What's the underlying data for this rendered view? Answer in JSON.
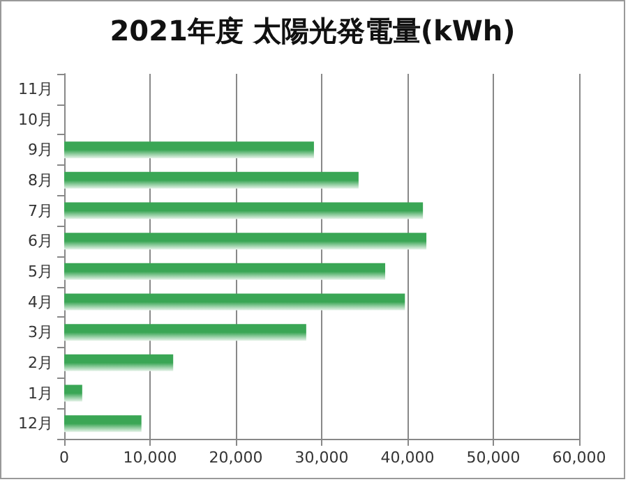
{
  "chart_data": {
    "type": "bar",
    "orientation": "horizontal",
    "title": "2021年度 太陽光発電量(kWh)",
    "categories": [
      "11月",
      "10月",
      "9月",
      "8月",
      "7月",
      "6月",
      "5月",
      "4月",
      "3月",
      "2月",
      "1月",
      "12月"
    ],
    "values": [
      null,
      null,
      29100,
      34300,
      41800,
      42200,
      37400,
      39700,
      28200,
      12700,
      2100,
      9000
    ],
    "color": "#3aa655",
    "xlim": [
      0,
      60000
    ],
    "xticks": [
      0,
      {
        "value": 10000,
        "label": "10,000"
      },
      {
        "value": 20000,
        "label": "20,000"
      },
      {
        "value": 30000,
        "label": "30,000"
      },
      {
        "value": 40000,
        "label": "40,000"
      },
      {
        "value": 50000,
        "label": "50,000"
      },
      {
        "value": 60000,
        "label": "60,000"
      }
    ],
    "grid": "x"
  }
}
